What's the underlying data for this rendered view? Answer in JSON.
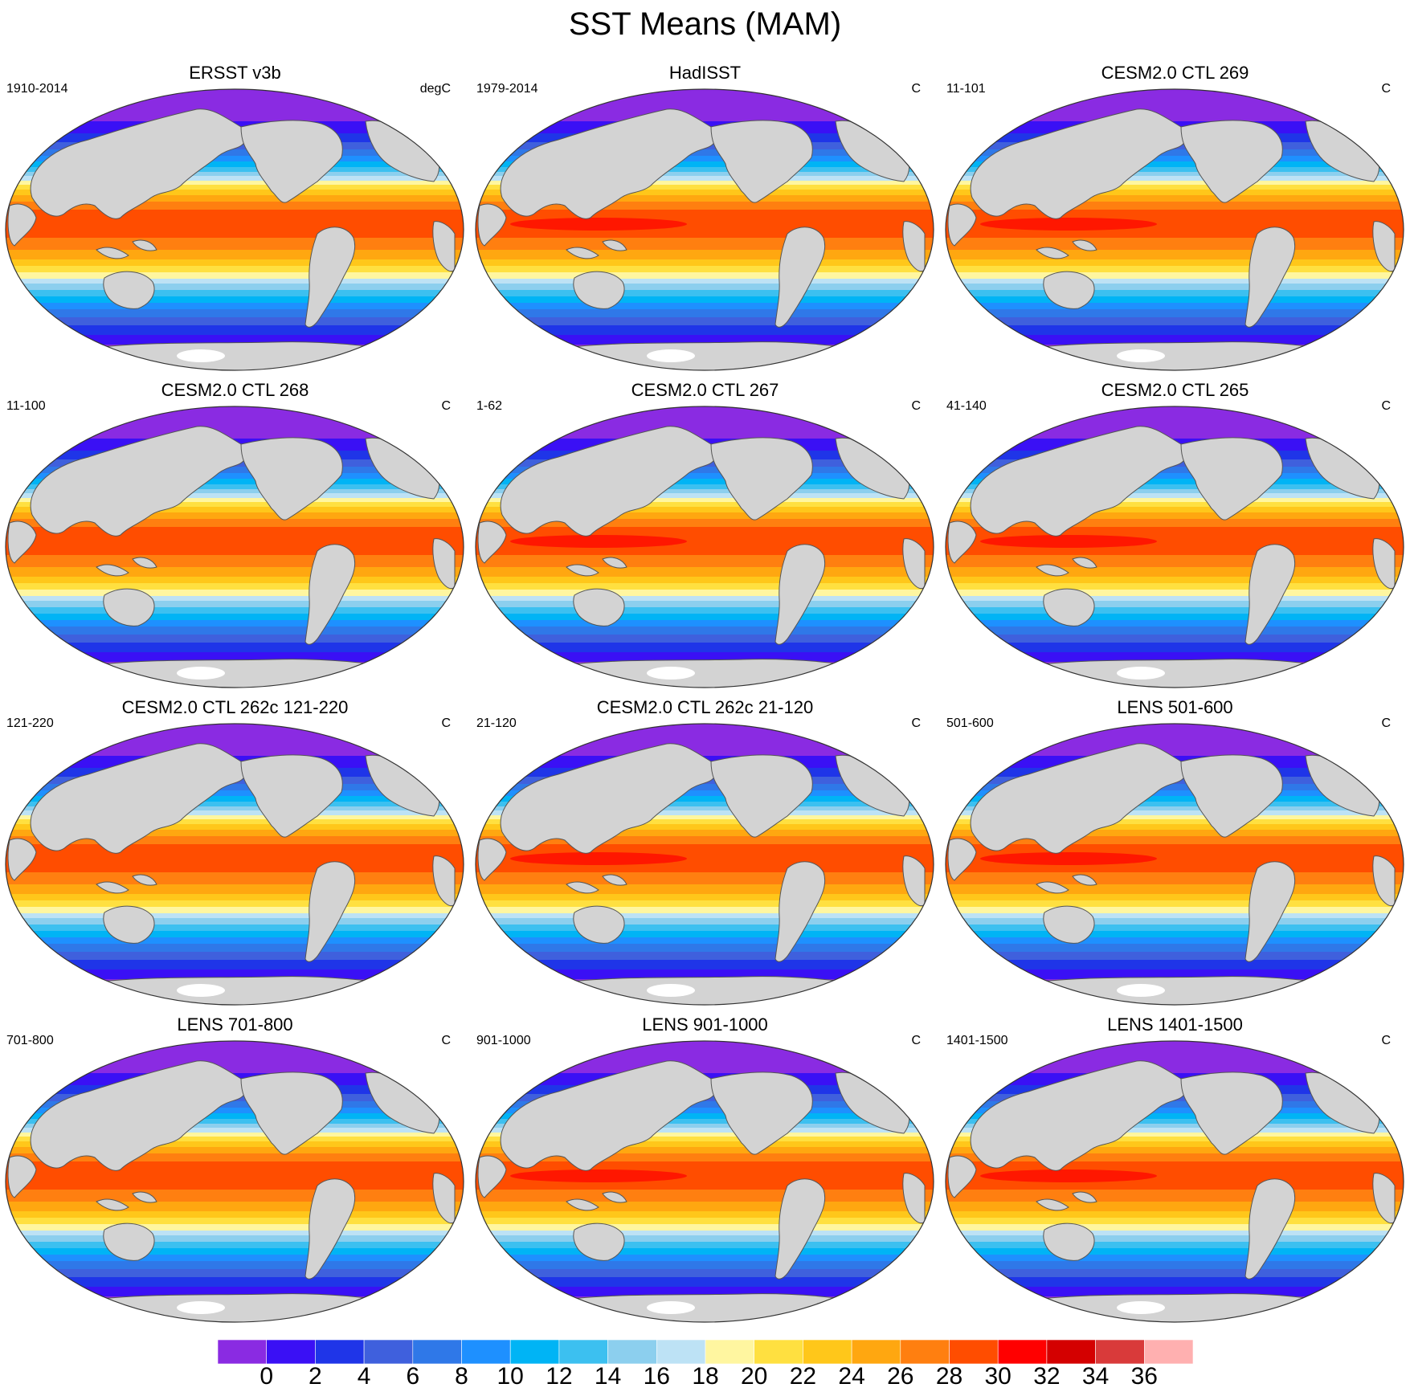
{
  "title": "SST Means (MAM)",
  "panels": [
    {
      "title": "ERSST v3b",
      "years": "1910-2014",
      "units": "degC"
    },
    {
      "title": "HadISST",
      "years": "1979-2014",
      "units": "C"
    },
    {
      "title": "CESM2.0 CTL 269",
      "years": "11-101",
      "units": "C"
    },
    {
      "title": "CESM2.0 CTL 268",
      "years": "11-100",
      "units": "C"
    },
    {
      "title": "CESM2.0 CTL 267",
      "years": "1-62",
      "units": "C"
    },
    {
      "title": "CESM2.0 CTL 265",
      "years": "41-140",
      "units": "C"
    },
    {
      "title": "CESM2.0 CTL 262c 121-220",
      "years": "121-220",
      "units": "C"
    },
    {
      "title": "CESM2.0 CTL 262c 21-120",
      "years": "21-120",
      "units": "C"
    },
    {
      "title": "LENS 501-600",
      "years": "501-600",
      "units": "C"
    },
    {
      "title": "LENS 701-800",
      "years": "701-800",
      "units": "C"
    },
    {
      "title": "LENS 901-1000",
      "years": "901-1000",
      "units": "C"
    },
    {
      "title": "LENS 1401-1500",
      "years": "1401-1500",
      "units": "C"
    }
  ],
  "colorbar": {
    "labels": [
      "0",
      "2",
      "4",
      "6",
      "8",
      "10",
      "12",
      "14",
      "16",
      "18",
      "20",
      "22",
      "24",
      "26",
      "28",
      "30",
      "32",
      "34",
      "36"
    ],
    "colors": [
      "#8a2be2",
      "#3a10f5",
      "#1f35e8",
      "#3f60dd",
      "#2f78e8",
      "#1e90ff",
      "#00b4f5",
      "#3cc0f0",
      "#8ccfee",
      "#bde2f5",
      "#fff6a0",
      "#ffe040",
      "#ffc71a",
      "#ffa710",
      "#ff7f10",
      "#ff4d00",
      "#ff0000",
      "#d40000",
      "#d93a3a",
      "#ffb0b0"
    ]
  },
  "map_colors": {
    "land": "#d3d3d3",
    "coast": "#555555",
    "sea_ice": "#ffffff"
  }
}
